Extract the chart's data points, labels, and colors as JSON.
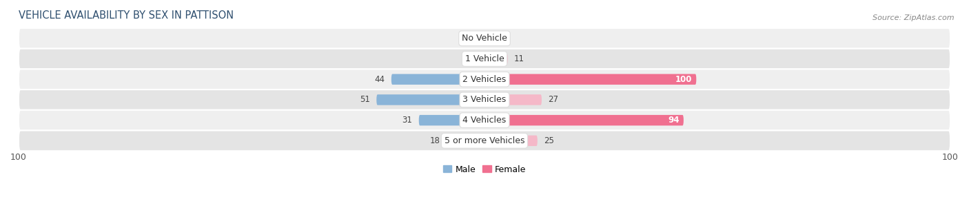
{
  "title": "VEHICLE AVAILABILITY BY SEX IN PATTISON",
  "source": "Source: ZipAtlas.com",
  "categories": [
    "No Vehicle",
    "1 Vehicle",
    "2 Vehicles",
    "3 Vehicles",
    "4 Vehicles",
    "5 or more Vehicles"
  ],
  "male_values": [
    0,
    5,
    44,
    51,
    31,
    18
  ],
  "female_values": [
    0,
    11,
    100,
    27,
    94,
    25
  ],
  "male_color": "#8ab4d8",
  "female_color": "#f07090",
  "male_color_light": "#b8d4ea",
  "female_color_light": "#f5b8c8",
  "row_bg_even": "#efefef",
  "row_bg_odd": "#e4e4e4",
  "axis_max": 100,
  "bar_height": 0.52,
  "title_fontsize": 10.5,
  "source_fontsize": 8,
  "label_fontsize": 9,
  "category_fontsize": 9,
  "value_fontsize": 8.5,
  "axis_label_fontsize": 9
}
